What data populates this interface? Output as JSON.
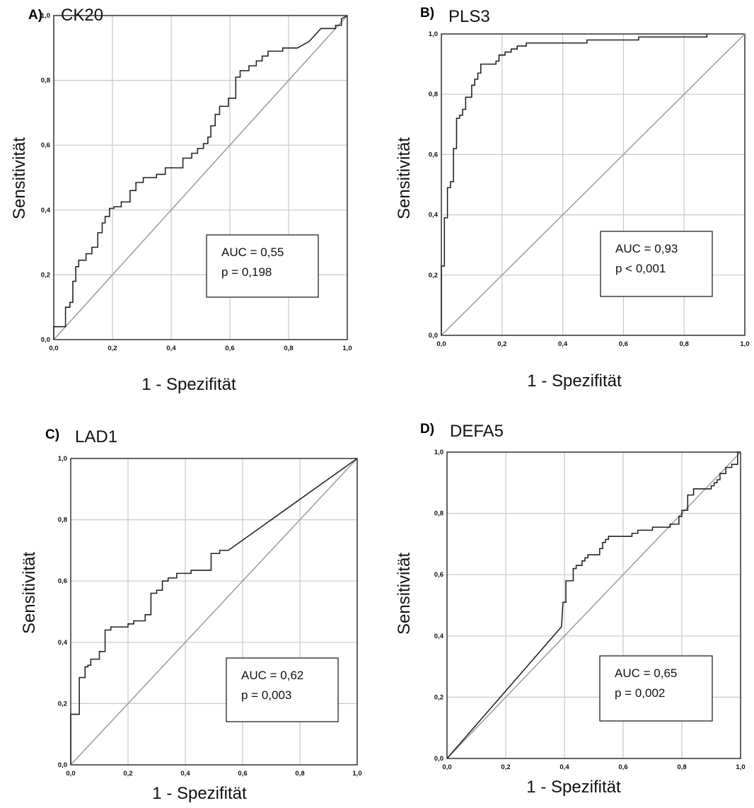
{
  "chart_data": [
    {
      "panel_label": "A)",
      "title": "CK20",
      "type": "line",
      "xlabel": "1 - Spezifität",
      "ylabel": "Sensitivität",
      "xlim": [
        0,
        1
      ],
      "ylim": [
        0,
        1
      ],
      "xticks": [
        "0,0",
        "0,2",
        "0,4",
        "0,6",
        "0,8",
        "1,0"
      ],
      "yticks": [
        "0,0",
        "0,2",
        "0,4",
        "0,6",
        "0,8",
        "1,0"
      ],
      "grid": true,
      "series": [
        {
          "values": [
            [
              0,
              0
            ],
            [
              0,
              0.04
            ],
            [
              0.04,
              0.04
            ],
            [
              0.04,
              0.1
            ],
            [
              0.055,
              0.1
            ],
            [
              0.055,
              0.115
            ],
            [
              0.065,
              0.115
            ],
            [
              0.065,
              0.18
            ],
            [
              0.075,
              0.18
            ],
            [
              0.075,
              0.225
            ],
            [
              0.085,
              0.225
            ],
            [
              0.085,
              0.245
            ],
            [
              0.11,
              0.245
            ],
            [
              0.11,
              0.265
            ],
            [
              0.13,
              0.265
            ],
            [
              0.13,
              0.285
            ],
            [
              0.15,
              0.285
            ],
            [
              0.15,
              0.33
            ],
            [
              0.165,
              0.33
            ],
            [
              0.165,
              0.36
            ],
            [
              0.175,
              0.36
            ],
            [
              0.175,
              0.38
            ],
            [
              0.19,
              0.38
            ],
            [
              0.19,
              0.405
            ],
            [
              0.205,
              0.405
            ],
            [
              0.205,
              0.41
            ],
            [
              0.23,
              0.41
            ],
            [
              0.23,
              0.425
            ],
            [
              0.26,
              0.425
            ],
            [
              0.26,
              0.46
            ],
            [
              0.28,
              0.46
            ],
            [
              0.28,
              0.485
            ],
            [
              0.305,
              0.485
            ],
            [
              0.305,
              0.5
            ],
            [
              0.35,
              0.5
            ],
            [
              0.35,
              0.51
            ],
            [
              0.38,
              0.51
            ],
            [
              0.38,
              0.53
            ],
            [
              0.44,
              0.53
            ],
            [
              0.44,
              0.56
            ],
            [
              0.47,
              0.56
            ],
            [
              0.47,
              0.575
            ],
            [
              0.49,
              0.575
            ],
            [
              0.49,
              0.59
            ],
            [
              0.51,
              0.59
            ],
            [
              0.51,
              0.605
            ],
            [
              0.525,
              0.605
            ],
            [
              0.525,
              0.625
            ],
            [
              0.535,
              0.625
            ],
            [
              0.535,
              0.66
            ],
            [
              0.55,
              0.66
            ],
            [
              0.55,
              0.695
            ],
            [
              0.565,
              0.695
            ],
            [
              0.565,
              0.72
            ],
            [
              0.595,
              0.72
            ],
            [
              0.595,
              0.745
            ],
            [
              0.62,
              0.745
            ],
            [
              0.62,
              0.81
            ],
            [
              0.635,
              0.81
            ],
            [
              0.635,
              0.83
            ],
            [
              0.665,
              0.83
            ],
            [
              0.665,
              0.845
            ],
            [
              0.69,
              0.845
            ],
            [
              0.69,
              0.86
            ],
            [
              0.71,
              0.86
            ],
            [
              0.71,
              0.875
            ],
            [
              0.73,
              0.875
            ],
            [
              0.73,
              0.89
            ],
            [
              0.78,
              0.89
            ],
            [
              0.78,
              0.9
            ],
            [
              0.83,
              0.9
            ],
            [
              0.85,
              0.91
            ],
            [
              0.87,
              0.92
            ],
            [
              0.89,
              0.94
            ],
            [
              0.91,
              0.96
            ],
            [
              0.96,
              0.96
            ],
            [
              0.96,
              0.97
            ],
            [
              0.98,
              0.97
            ],
            [
              0.98,
              0.99
            ],
            [
              1.0,
              1.0
            ]
          ]
        }
      ],
      "annotation_lines": [
        "AUC = 0,55",
        "p = 0,198"
      ]
    },
    {
      "panel_label": "B)",
      "title": "PLS3",
      "type": "line",
      "xlabel": "1 - Spezifität",
      "ylabel": "Sensitivität",
      "xlim": [
        0,
        1
      ],
      "ylim": [
        0,
        1
      ],
      "xticks": [
        "0,0",
        "0,2",
        "0,4",
        "0,6",
        "0,8",
        "1,0"
      ],
      "yticks": [
        "0,0",
        "0,2",
        "0,4",
        "0,6",
        "0,8",
        "1,0"
      ],
      "grid": true,
      "series": [
        {
          "values": [
            [
              0,
              0
            ],
            [
              0,
              0.23
            ],
            [
              0.01,
              0.23
            ],
            [
              0.01,
              0.39
            ],
            [
              0.02,
              0.39
            ],
            [
              0.02,
              0.49
            ],
            [
              0.03,
              0.49
            ],
            [
              0.03,
              0.51
            ],
            [
              0.04,
              0.51
            ],
            [
              0.04,
              0.62
            ],
            [
              0.05,
              0.62
            ],
            [
              0.05,
              0.72
            ],
            [
              0.06,
              0.72
            ],
            [
              0.06,
              0.73
            ],
            [
              0.07,
              0.73
            ],
            [
              0.07,
              0.75
            ],
            [
              0.08,
              0.75
            ],
            [
              0.08,
              0.79
            ],
            [
              0.1,
              0.79
            ],
            [
              0.1,
              0.83
            ],
            [
              0.11,
              0.83
            ],
            [
              0.11,
              0.85
            ],
            [
              0.12,
              0.85
            ],
            [
              0.12,
              0.87
            ],
            [
              0.13,
              0.87
            ],
            [
              0.13,
              0.9
            ],
            [
              0.18,
              0.9
            ],
            [
              0.18,
              0.91
            ],
            [
              0.19,
              0.91
            ],
            [
              0.19,
              0.93
            ],
            [
              0.21,
              0.93
            ],
            [
              0.21,
              0.94
            ],
            [
              0.23,
              0.94
            ],
            [
              0.23,
              0.95
            ],
            [
              0.25,
              0.95
            ],
            [
              0.25,
              0.96
            ],
            [
              0.28,
              0.96
            ],
            [
              0.28,
              0.97
            ],
            [
              0.48,
              0.97
            ],
            [
              0.48,
              0.98
            ],
            [
              0.65,
              0.98
            ],
            [
              0.65,
              0.99
            ],
            [
              0.875,
              0.99
            ],
            [
              0.875,
              1.0
            ]
          ]
        }
      ],
      "annotation_lines": [
        "AUC = 0,93",
        "p < 0,001"
      ]
    },
    {
      "panel_label": "C)",
      "title": "LAD1",
      "type": "line",
      "xlabel": "1 - Spezifität",
      "ylabel": "Sensitivität",
      "xlim": [
        0,
        1
      ],
      "ylim": [
        0,
        1
      ],
      "xticks": [
        "0,0",
        "0,2",
        "0,4",
        "0,6",
        "0,8",
        "1,0"
      ],
      "yticks": [
        "0,0",
        "0,2",
        "0,4",
        "0,6",
        "0,8",
        "1,0"
      ],
      "grid": true,
      "series": [
        {
          "values": [
            [
              0,
              0
            ],
            [
              0,
              0.165
            ],
            [
              0.03,
              0.165
            ],
            [
              0.03,
              0.285
            ],
            [
              0.05,
              0.285
            ],
            [
              0.05,
              0.32
            ],
            [
              0.06,
              0.32
            ],
            [
              0.06,
              0.325
            ],
            [
              0.07,
              0.325
            ],
            [
              0.07,
              0.345
            ],
            [
              0.1,
              0.345
            ],
            [
              0.1,
              0.37
            ],
            [
              0.12,
              0.37
            ],
            [
              0.12,
              0.44
            ],
            [
              0.14,
              0.44
            ],
            [
              0.14,
              0.45
            ],
            [
              0.2,
              0.45
            ],
            [
              0.2,
              0.46
            ],
            [
              0.22,
              0.46
            ],
            [
              0.22,
              0.47
            ],
            [
              0.26,
              0.47
            ],
            [
              0.26,
              0.49
            ],
            [
              0.28,
              0.49
            ],
            [
              0.28,
              0.56
            ],
            [
              0.3,
              0.56
            ],
            [
              0.3,
              0.57
            ],
            [
              0.32,
              0.57
            ],
            [
              0.32,
              0.6
            ],
            [
              0.34,
              0.6
            ],
            [
              0.34,
              0.61
            ],
            [
              0.37,
              0.61
            ],
            [
              0.37,
              0.625
            ],
            [
              0.42,
              0.625
            ],
            [
              0.42,
              0.635
            ],
            [
              0.49,
              0.635
            ],
            [
              0.49,
              0.69
            ],
            [
              0.52,
              0.69
            ],
            [
              0.52,
              0.7
            ],
            [
              0.55,
              0.7
            ],
            [
              1.0,
              1.0
            ]
          ]
        }
      ],
      "annotation_lines": [
        "AUC = 0,62",
        "p = 0,003"
      ]
    },
    {
      "panel_label": "D)",
      "title": "DEFA5",
      "type": "line",
      "xlabel": "1 - Spezifität",
      "ylabel": "Sensitivität",
      "xlim": [
        0,
        1
      ],
      "ylim": [
        0,
        1
      ],
      "xticks": [
        "0,0",
        "0,2",
        "0,4",
        "0,6",
        "0,8",
        "1,0"
      ],
      "yticks": [
        "0,0",
        "0,2",
        "0,4",
        "0,6",
        "0,8",
        "1,0"
      ],
      "grid": true,
      "series": [
        {
          "values": [
            [
              0,
              0
            ],
            [
              0.39,
              0.43
            ],
            [
              0.395,
              0.51
            ],
            [
              0.405,
              0.51
            ],
            [
              0.405,
              0.58
            ],
            [
              0.43,
              0.58
            ],
            [
              0.43,
              0.62
            ],
            [
              0.44,
              0.62
            ],
            [
              0.44,
              0.63
            ],
            [
              0.46,
              0.63
            ],
            [
              0.46,
              0.645
            ],
            [
              0.47,
              0.645
            ],
            [
              0.47,
              0.655
            ],
            [
              0.48,
              0.655
            ],
            [
              0.48,
              0.665
            ],
            [
              0.52,
              0.665
            ],
            [
              0.52,
              0.685
            ],
            [
              0.53,
              0.685
            ],
            [
              0.53,
              0.705
            ],
            [
              0.54,
              0.705
            ],
            [
              0.54,
              0.715
            ],
            [
              0.55,
              0.715
            ],
            [
              0.55,
              0.725
            ],
            [
              0.63,
              0.725
            ],
            [
              0.63,
              0.735
            ],
            [
              0.65,
              0.735
            ],
            [
              0.65,
              0.745
            ],
            [
              0.7,
              0.745
            ],
            [
              0.7,
              0.755
            ],
            [
              0.76,
              0.755
            ],
            [
              0.76,
              0.765
            ],
            [
              0.79,
              0.765
            ],
            [
              0.79,
              0.79
            ],
            [
              0.8,
              0.79
            ],
            [
              0.8,
              0.81
            ],
            [
              0.82,
              0.81
            ],
            [
              0.82,
              0.86
            ],
            [
              0.84,
              0.86
            ],
            [
              0.84,
              0.88
            ],
            [
              0.9,
              0.88
            ],
            [
              0.9,
              0.89
            ],
            [
              0.91,
              0.89
            ],
            [
              0.91,
              0.9
            ],
            [
              0.92,
              0.9
            ],
            [
              0.92,
              0.91
            ],
            [
              0.93,
              0.91
            ],
            [
              0.93,
              0.93
            ],
            [
              0.95,
              0.93
            ],
            [
              0.95,
              0.95
            ],
            [
              0.97,
              0.95
            ],
            [
              0.97,
              0.96
            ],
            [
              0.99,
              0.96
            ],
            [
              0.99,
              1.0
            ],
            [
              1.0,
              1.0
            ]
          ]
        }
      ],
      "annotation_lines": [
        "AUC = 0,65",
        "p = 0,002"
      ]
    }
  ]
}
